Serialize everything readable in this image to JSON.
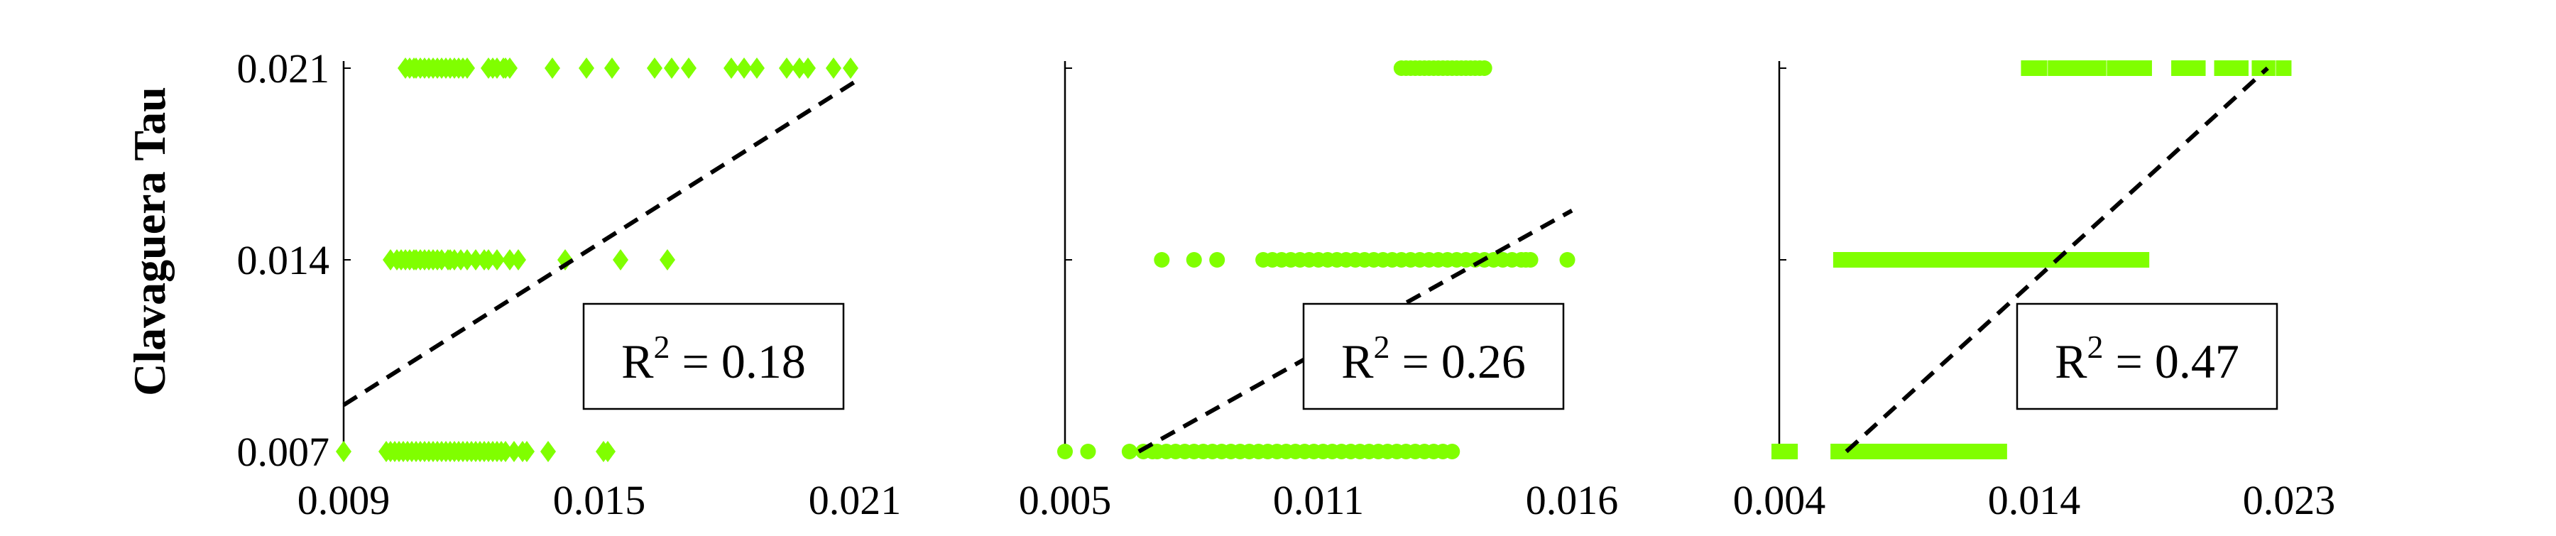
{
  "chart_data": [
    {
      "type": "scatter",
      "marker": "diamond",
      "color": "#80ff00",
      "ylabel": "Clavaguera Tau",
      "xlim": [
        0.009,
        0.021
      ],
      "ylim": [
        0.007,
        0.021
      ],
      "xticks": [
        "0.009",
        "0.015",
        "0.021"
      ],
      "yticks": [
        "0.007",
        "0.014",
        "0.021"
      ],
      "fit_line": {
        "x": [
          0.009,
          0.021
        ],
        "y": [
          0.0087,
          0.0205
        ]
      },
      "annotation": {
        "base": "R",
        "sup": "2",
        "rest": " = 0.18"
      },
      "points": {
        "x": [
          0.01045,
          0.01055,
          0.01065,
          0.0107,
          0.0108,
          0.0109,
          0.011,
          0.0111,
          0.0112,
          0.0113,
          0.0114,
          0.0115,
          0.0116,
          0.0117,
          0.0118,
          0.0119,
          0.0124,
          0.0125,
          0.0126,
          0.01275,
          0.0128,
          0.0129,
          0.0139,
          0.0147,
          0.0153,
          0.0163,
          0.0167,
          0.0171,
          0.0181,
          0.0184,
          0.0187,
          0.0194,
          0.0197,
          0.0199,
          0.0205,
          0.0209,
          0.0101,
          0.01025,
          0.01035,
          0.01045,
          0.01055,
          0.01065,
          0.0107,
          0.0108,
          0.0109,
          0.011,
          0.0111,
          0.0112,
          0.0113,
          0.01145,
          0.0115,
          0.0116,
          0.01175,
          0.0119,
          0.0121,
          0.0123,
          0.0124,
          0.0126,
          0.0129,
          0.0131,
          0.0142,
          0.0155,
          0.0166,
          0.009,
          0.01,
          0.0101,
          0.0102,
          0.0103,
          0.0104,
          0.0105,
          0.0106,
          0.0107,
          0.0108,
          0.0109,
          0.011,
          0.0111,
          0.0112,
          0.0113,
          0.0114,
          0.0115,
          0.0116,
          0.0117,
          0.0118,
          0.0119,
          0.012,
          0.0121,
          0.0122,
          0.0123,
          0.0124,
          0.0125,
          0.0126,
          0.0127,
          0.0128,
          0.013,
          0.0132,
          0.0133,
          0.0138,
          0.0151,
          0.0152
        ],
        "y": [
          0.021,
          0.021,
          0.021,
          0.021,
          0.021,
          0.021,
          0.021,
          0.021,
          0.021,
          0.021,
          0.021,
          0.021,
          0.021,
          0.021,
          0.021,
          0.021,
          0.021,
          0.021,
          0.021,
          0.021,
          0.021,
          0.021,
          0.021,
          0.021,
          0.021,
          0.021,
          0.021,
          0.021,
          0.021,
          0.021,
          0.021,
          0.021,
          0.021,
          0.021,
          0.021,
          0.021,
          0.014,
          0.014,
          0.014,
          0.014,
          0.014,
          0.014,
          0.014,
          0.014,
          0.014,
          0.014,
          0.014,
          0.014,
          0.014,
          0.014,
          0.014,
          0.014,
          0.014,
          0.014,
          0.014,
          0.014,
          0.014,
          0.014,
          0.014,
          0.014,
          0.014,
          0.014,
          0.014,
          0.007,
          0.007,
          0.007,
          0.007,
          0.007,
          0.007,
          0.007,
          0.007,
          0.007,
          0.007,
          0.007,
          0.007,
          0.007,
          0.007,
          0.007,
          0.007,
          0.007,
          0.007,
          0.007,
          0.007,
          0.007,
          0.007,
          0.007,
          0.007,
          0.007,
          0.007,
          0.007,
          0.007,
          0.007,
          0.007,
          0.007,
          0.007,
          0.007,
          0.007,
          0.007,
          0.007
        ]
      }
    },
    {
      "type": "scatter",
      "marker": "circle",
      "color": "#80ff00",
      "xlim": [
        0.005,
        0.016
      ],
      "ylim": [
        0.007,
        0.021
      ],
      "xticks": [
        "0.005",
        "0.011",
        "0.016"
      ],
      "fit_line": {
        "x": [
          0.0066,
          0.016
        ],
        "y": [
          0.007,
          0.0158
        ]
      },
      "annotation": {
        "base": "R",
        "sup": "2",
        "rest": " = 0.26"
      },
      "points": {
        "x": [
          0.0123,
          0.0124,
          0.0125,
          0.0126,
          0.0127,
          0.0128,
          0.0129,
          0.013,
          0.0131,
          0.0132,
          0.0133,
          0.0134,
          0.0135,
          0.0136,
          0.0137,
          0.0138,
          0.0139,
          0.014,
          0.0141,
          0.0071,
          0.0078,
          0.0083,
          0.0093,
          0.0095,
          0.0097,
          0.0099,
          0.0101,
          0.0103,
          0.0105,
          0.0107,
          0.0109,
          0.0111,
          0.0113,
          0.0115,
          0.0117,
          0.0119,
          0.0121,
          0.0123,
          0.0125,
          0.0127,
          0.0129,
          0.0131,
          0.0133,
          0.0135,
          0.0137,
          0.0139,
          0.0141,
          0.0143,
          0.0145,
          0.0147,
          0.0149,
          0.015,
          0.0151,
          0.0159,
          0.005,
          0.0055,
          0.0064,
          0.0067,
          0.0069,
          0.007,
          0.0072,
          0.0074,
          0.0076,
          0.0078,
          0.008,
          0.0082,
          0.0084,
          0.0086,
          0.0088,
          0.009,
          0.0092,
          0.0094,
          0.0096,
          0.0098,
          0.01,
          0.0102,
          0.0104,
          0.0106,
          0.0108,
          0.011,
          0.0112,
          0.0114,
          0.0116,
          0.0118,
          0.012,
          0.0122,
          0.0124,
          0.0126,
          0.0128,
          0.013,
          0.0132,
          0.0134
        ],
        "y": [
          0.021,
          0.021,
          0.021,
          0.021,
          0.021,
          0.021,
          0.021,
          0.021,
          0.021,
          0.021,
          0.021,
          0.021,
          0.021,
          0.021,
          0.021,
          0.021,
          0.021,
          0.021,
          0.021,
          0.014,
          0.014,
          0.014,
          0.014,
          0.014,
          0.014,
          0.014,
          0.014,
          0.014,
          0.014,
          0.014,
          0.014,
          0.014,
          0.014,
          0.014,
          0.014,
          0.014,
          0.014,
          0.014,
          0.014,
          0.014,
          0.014,
          0.014,
          0.014,
          0.014,
          0.014,
          0.014,
          0.014,
          0.014,
          0.014,
          0.014,
          0.014,
          0.014,
          0.014,
          0.014,
          0.007,
          0.007,
          0.007,
          0.007,
          0.007,
          0.007,
          0.007,
          0.007,
          0.007,
          0.007,
          0.007,
          0.007,
          0.007,
          0.007,
          0.007,
          0.007,
          0.007,
          0.007,
          0.007,
          0.007,
          0.007,
          0.007,
          0.007,
          0.007,
          0.007,
          0.007,
          0.007,
          0.007,
          0.007,
          0.007,
          0.007,
          0.007,
          0.007,
          0.007,
          0.007,
          0.007,
          0.007,
          0.007
        ]
      }
    },
    {
      "type": "scatter",
      "marker": "square",
      "color": "#80ff00",
      "xlim": [
        0.004,
        0.023
      ],
      "ylim": [
        0.007,
        0.021
      ],
      "xticks": [
        "0.004",
        "0.014",
        "0.023"
      ],
      "fit_line": {
        "x": [
          0.0065,
          0.0222
        ],
        "y": [
          0.007,
          0.021
        ]
      },
      "annotation": {
        "base": "R",
        "sup": "2",
        "rest": " = 0.47"
      },
      "points": {
        "x": [
          0.0133,
          0.0137,
          0.0143,
          0.0147,
          0.0152,
          0.0157,
          0.0159,
          0.0165,
          0.0169,
          0.0174,
          0.0176,
          0.0189,
          0.0192,
          0.0196,
          0.0205,
          0.0208,
          0.0212,
          0.0219,
          0.0222,
          0.0228,
          0.0063,
          0.0067,
          0.0071,
          0.0075,
          0.0079,
          0.0083,
          0.0087,
          0.0091,
          0.0095,
          0.0099,
          0.0103,
          0.0107,
          0.0111,
          0.0115,
          0.0119,
          0.0123,
          0.0127,
          0.0131,
          0.0135,
          0.0139,
          0.0143,
          0.0147,
          0.0151,
          0.0155,
          0.0159,
          0.0163,
          0.0167,
          0.0171,
          0.0175,
          0.004,
          0.0044,
          0.0062,
          0.0066,
          0.007,
          0.0074,
          0.0078,
          0.0082,
          0.0086,
          0.009,
          0.0094,
          0.0098,
          0.0102,
          0.0106,
          0.011,
          0.0114,
          0.0118,
          0.0122
        ],
        "y": [
          0.021,
          0.021,
          0.021,
          0.021,
          0.021,
          0.021,
          0.021,
          0.021,
          0.021,
          0.021,
          0.021,
          0.021,
          0.021,
          0.021,
          0.021,
          0.021,
          0.021,
          0.021,
          0.021,
          0.021,
          0.014,
          0.014,
          0.014,
          0.014,
          0.014,
          0.014,
          0.014,
          0.014,
          0.014,
          0.014,
          0.014,
          0.014,
          0.014,
          0.014,
          0.014,
          0.014,
          0.014,
          0.014,
          0.014,
          0.014,
          0.014,
          0.014,
          0.014,
          0.014,
          0.014,
          0.014,
          0.014,
          0.014,
          0.014,
          0.007,
          0.007,
          0.007,
          0.007,
          0.007,
          0.007,
          0.007,
          0.007,
          0.007,
          0.007,
          0.007,
          0.007,
          0.007,
          0.007,
          0.007,
          0.007,
          0.007,
          0.007
        ]
      }
    }
  ]
}
